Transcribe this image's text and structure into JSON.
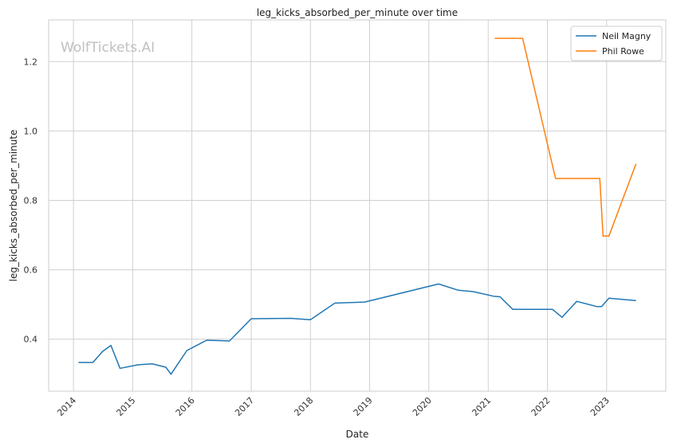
{
  "chart_data": {
    "type": "line",
    "title": "leg_kicks_absorbed_per_minute over time",
    "xlabel": "Date",
    "ylabel": "leg_kicks_absorbed_per_minute",
    "watermark": "WolfTickets.AI",
    "xlim": [
      "2013-08-01",
      "2024-01-01"
    ],
    "ylim": [
      0.25,
      1.32
    ],
    "x_ticks": [
      "2014",
      "2015",
      "2016",
      "2017",
      "2018",
      "2019",
      "2020",
      "2021",
      "2022",
      "2023"
    ],
    "y_ticks": [
      0.4,
      0.6,
      0.8,
      1.0,
      1.2
    ],
    "y_tick_labels": [
      "0.4",
      "0.6",
      "0.8",
      "1.0",
      "1.2"
    ],
    "grid": true,
    "legend_position": "top-right",
    "series": [
      {
        "name": "Neil Magny",
        "color": "#1f77b4",
        "points": [
          [
            "2014-02-01",
            0.333
          ],
          [
            "2014-05-01",
            0.333
          ],
          [
            "2014-07-01",
            0.365
          ],
          [
            "2014-08-20",
            0.382
          ],
          [
            "2014-10-15",
            0.316
          ],
          [
            "2015-02-01",
            0.326
          ],
          [
            "2015-05-01",
            0.329
          ],
          [
            "2015-07-25",
            0.319
          ],
          [
            "2015-08-25",
            0.299
          ],
          [
            "2015-12-01",
            0.367
          ],
          [
            "2016-04-01",
            0.397
          ],
          [
            "2016-08-20",
            0.395
          ],
          [
            "2017-01-01",
            0.459
          ],
          [
            "2017-09-01",
            0.46
          ],
          [
            "2018-01-01",
            0.456
          ],
          [
            "2018-06-01",
            0.504
          ],
          [
            "2018-12-01",
            0.507
          ],
          [
            "2020-03-01",
            0.559
          ],
          [
            "2020-07-01",
            0.541
          ],
          [
            "2020-10-01",
            0.537
          ],
          [
            "2021-02-01",
            0.524
          ],
          [
            "2021-03-15",
            0.522
          ],
          [
            "2021-06-01",
            0.486
          ],
          [
            "2022-02-01",
            0.486
          ],
          [
            "2022-04-01",
            0.463
          ],
          [
            "2022-07-01",
            0.509
          ],
          [
            "2022-11-01",
            0.494
          ],
          [
            "2022-12-01",
            0.494
          ],
          [
            "2023-01-15",
            0.518
          ],
          [
            "2023-07-01",
            0.511
          ]
        ]
      },
      {
        "name": "Phil Rowe",
        "color": "#ff7f0e",
        "points": [
          [
            "2021-02-10",
            1.267
          ],
          [
            "2021-08-01",
            1.267
          ],
          [
            "2022-02-20",
            0.863
          ],
          [
            "2022-11-20",
            0.863
          ],
          [
            "2022-12-10",
            0.697
          ],
          [
            "2023-01-15",
            0.697
          ],
          [
            "2023-07-01",
            0.905
          ]
        ]
      }
    ]
  }
}
